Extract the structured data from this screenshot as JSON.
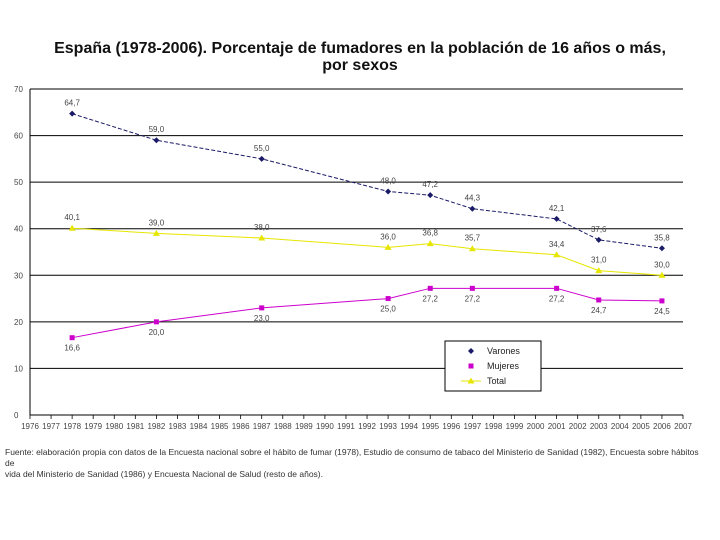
{
  "chart_data": {
    "type": "line",
    "title": "España (1978-2006). Porcentaje de fumadores en la población de 16 años o más,",
    "subtitle": "por sexos",
    "ylim": [
      0,
      70
    ],
    "yticks": [
      0,
      10,
      20,
      30,
      40,
      50,
      60,
      70
    ],
    "xticks": [
      "1976",
      "1977",
      "1978",
      "1979",
      "1980",
      "1981",
      "1982",
      "1983",
      "1984",
      "1985",
      "1986",
      "1987",
      "1988",
      "1989",
      "1990",
      "1991",
      "1992",
      "1993",
      "1994",
      "1995",
      "1996",
      "1997",
      "1998",
      "1999",
      "2000",
      "2001",
      "2002",
      "2003",
      "2004",
      "2005",
      "2006",
      "2007"
    ],
    "grid": true,
    "legend_position": "bottom-right",
    "series": [
      {
        "name": "Varones",
        "color": "#1a1a66",
        "marker": "diamond",
        "x": [
          1978,
          1982,
          1987,
          1993,
          1995,
          1997,
          2001,
          2003,
          2006
        ],
        "values": [
          64.7,
          59.0,
          55.0,
          48.0,
          47.2,
          44.3,
          42.1,
          37.6,
          35.8
        ],
        "labels": [
          "64,7",
          "59,0",
          "55,0",
          "48,0",
          "47,2",
          "44,3",
          "42,1",
          "37,6",
          "35,8"
        ]
      },
      {
        "name": "Mujeres",
        "color": "#cc00cc",
        "marker": "square",
        "x": [
          1978,
          1982,
          1987,
          1993,
          1995,
          1997,
          2001,
          2003,
          2006
        ],
        "values": [
          16.6,
          20.0,
          23.0,
          25.0,
          27.2,
          27.2,
          27.2,
          24.7,
          24.5
        ],
        "labels": [
          "16,6",
          "20,0",
          "23,0",
          "25,0",
          "27,2",
          "27,2",
          "27,2",
          "24,7",
          "24,5"
        ]
      },
      {
        "name": "Total",
        "color": "#e6e600",
        "marker": "triangle",
        "x": [
          1978,
          1982,
          1987,
          1993,
          1995,
          1997,
          2001,
          2003,
          2006
        ],
        "values": [
          40.1,
          39.0,
          38.0,
          36.0,
          36.8,
          35.7,
          34.4,
          31.0,
          30.0
        ],
        "labels": [
          "40,1",
          "39,0",
          "38,0",
          "36,0",
          "36,8",
          "35,7",
          "34,4",
          "31,0",
          "30,0"
        ]
      }
    ]
  },
  "source": {
    "line1": "Fuente: elaboración propia con datos de la Encuesta nacional sobre el hábito de fumar (1978), Estudio de consumo de tabaco del Ministerio de Sanidad (1982), Encuesta sobre hábitos de",
    "line2": "vida del Ministerio de Sanidad (1986) y Encuesta Nacional de Salud (resto de años)."
  }
}
